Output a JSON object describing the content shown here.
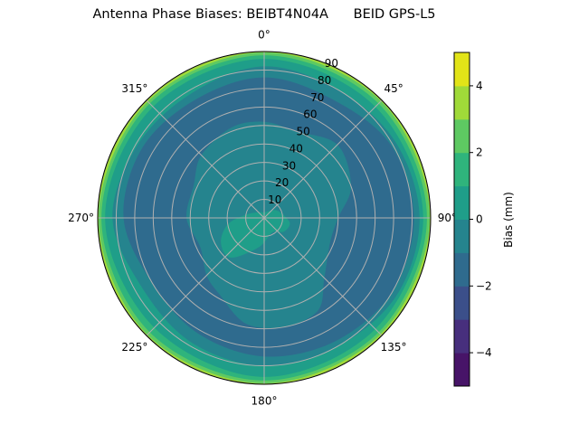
{
  "chart_data": {
    "type": "polar-contour",
    "title": "Antenna Phase Biases: BEIBT4N04A      BEID GPS-L5",
    "theta_direction": "clockwise",
    "theta_zero": "top",
    "theta_ticks": [
      "0°",
      "45°",
      "90°",
      "135°",
      "180°",
      "225°",
      "270°",
      "315°"
    ],
    "r_ticks": [
      "10",
      "20",
      "30",
      "40",
      "50",
      "60",
      "70",
      "80",
      "90"
    ],
    "r_tick_values": [
      10,
      20,
      30,
      40,
      50,
      60,
      70,
      80,
      90
    ],
    "rlim": [
      0,
      90
    ],
    "colorbar": {
      "label": "Bias (mm)",
      "range": [
        -5,
        5
      ],
      "levels": [
        -5,
        -4,
        -3,
        -2,
        -1,
        0,
        1,
        2,
        3,
        4,
        5
      ],
      "colors": [
        "#471468",
        "#472f7d",
        "#3b4f8a",
        "#2f6b8e",
        "#25848e",
        "#1f9e89",
        "#2fb47c",
        "#5ec962",
        "#a0da39",
        "#e2e418"
      ],
      "ticks": [
        "−4",
        "−2",
        "0",
        "2",
        "4"
      ],
      "tick_values": [
        -4,
        -2,
        0,
        2,
        4
      ]
    },
    "regions": [
      {
        "bias": 3.5,
        "outer": [
          [
            0,
            90
          ],
          [
            90,
            90
          ],
          [
            180,
            90
          ],
          [
            270,
            90
          ]
        ]
      },
      {
        "bias": 2.5,
        "outer": [
          [
            0,
            89.5
          ],
          [
            45,
            89.3
          ],
          [
            90,
            89.5
          ],
          [
            135,
            89
          ],
          [
            180,
            89.5
          ],
          [
            225,
            89.3
          ],
          [
            270,
            89.5
          ],
          [
            315,
            89
          ]
        ]
      },
      {
        "bias": 1.5,
        "outer": [
          [
            0,
            88
          ],
          [
            45,
            87.5
          ],
          [
            90,
            88
          ],
          [
            135,
            87.5
          ],
          [
            180,
            88
          ],
          [
            225,
            87.5
          ],
          [
            270,
            88
          ],
          [
            315,
            87.5
          ]
        ]
      },
      {
        "bias": 0.5,
        "outer": [
          [
            0,
            86
          ],
          [
            45,
            85
          ],
          [
            90,
            86
          ],
          [
            135,
            85
          ],
          [
            180,
            86
          ],
          [
            225,
            84
          ],
          [
            270,
            86
          ],
          [
            315,
            85
          ]
        ]
      },
      {
        "bias": -0.5,
        "outer": [
          [
            0,
            82
          ],
          [
            30,
            80
          ],
          [
            60,
            82
          ],
          [
            90,
            84
          ],
          [
            120,
            83
          ],
          [
            150,
            80
          ],
          [
            180,
            80
          ],
          [
            210,
            78
          ],
          [
            240,
            76
          ],
          [
            270,
            82
          ],
          [
            300,
            79
          ],
          [
            330,
            78
          ]
        ]
      },
      {
        "bias": -1.5,
        "outer": [
          [
            0,
            76
          ],
          [
            30,
            74
          ],
          [
            60,
            79
          ],
          [
            90,
            81
          ],
          [
            120,
            80
          ],
          [
            150,
            77
          ],
          [
            180,
            75
          ],
          [
            210,
            72
          ],
          [
            240,
            70
          ],
          [
            270,
            76
          ],
          [
            300,
            76
          ],
          [
            330,
            74
          ]
        ]
      },
      {
        "bias": -0.5,
        "outer": [
          [
            0,
            52
          ],
          [
            20,
            50
          ],
          [
            45,
            56
          ],
          [
            70,
            50
          ],
          [
            90,
            40
          ],
          [
            110,
            38
          ],
          [
            135,
            46
          ],
          [
            150,
            58
          ],
          [
            170,
            60
          ],
          [
            190,
            58
          ],
          [
            210,
            48
          ],
          [
            225,
            44
          ],
          [
            245,
            38
          ],
          [
            270,
            42
          ],
          [
            295,
            42
          ],
          [
            315,
            48
          ],
          [
            340,
            52
          ]
        ]
      },
      {
        "bias": 0.5,
        "outer": [
          [
            0,
            3
          ],
          [
            60,
            8
          ],
          [
            100,
            14
          ],
          [
            125,
            13
          ],
          [
            150,
            9
          ],
          [
            190,
            16
          ],
          [
            220,
            28
          ],
          [
            240,
            27
          ],
          [
            260,
            20
          ],
          [
            280,
            10
          ],
          [
            320,
            4
          ]
        ]
      }
    ]
  }
}
